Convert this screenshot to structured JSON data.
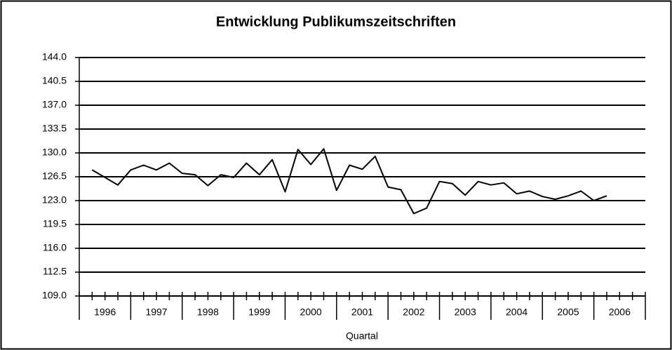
{
  "chart_data": {
    "type": "line",
    "title": "Entwicklung Publikumszeitschriften",
    "x_label": "Quartal",
    "categories": [
      "1996",
      "1997",
      "1998",
      "1999",
      "2000",
      "2001",
      "2002",
      "2003",
      "2004",
      "2005",
      "2006"
    ],
    "values": [
      [
        127.5,
        126.4,
        125.3,
        127.5
      ],
      [
        128.2,
        127.5,
        128.5,
        127.0
      ],
      [
        126.8,
        125.2,
        126.8,
        126.4
      ],
      [
        128.5,
        126.8,
        129.0,
        124.3
      ],
      [
        130.5,
        128.3,
        130.6,
        124.5
      ],
      [
        128.2,
        127.6,
        129.5,
        125.0
      ],
      [
        124.6,
        121.1,
        121.9,
        125.8
      ],
      [
        125.5,
        123.8,
        125.8,
        125.3
      ],
      [
        125.6,
        124.0,
        124.4,
        123.6
      ],
      [
        123.2,
        123.7,
        124.4,
        123.0
      ],
      [
        123.7,
        null,
        null,
        null
      ]
    ],
    "color": "#000000",
    "ylim": [
      109.0,
      144.0
    ],
    "yticks": [
      {
        "value": 109.0,
        "label": "109.0"
      },
      {
        "value": 112.5,
        "label": "112.5"
      },
      {
        "value": 116.0,
        "label": "116.0"
      },
      {
        "value": 119.5,
        "label": "119.5"
      },
      {
        "value": 123.0,
        "label": "123.0"
      },
      {
        "value": 126.5,
        "label": "126.5"
      },
      {
        "value": 130.0,
        "label": "130.0"
      },
      {
        "value": 133.5,
        "label": "133.5"
      },
      {
        "value": 137.0,
        "label": "137.0"
      },
      {
        "value": 140.5,
        "label": "140.5"
      },
      {
        "value": 144.0,
        "label": "144.0"
      }
    ],
    "grid": true
  }
}
